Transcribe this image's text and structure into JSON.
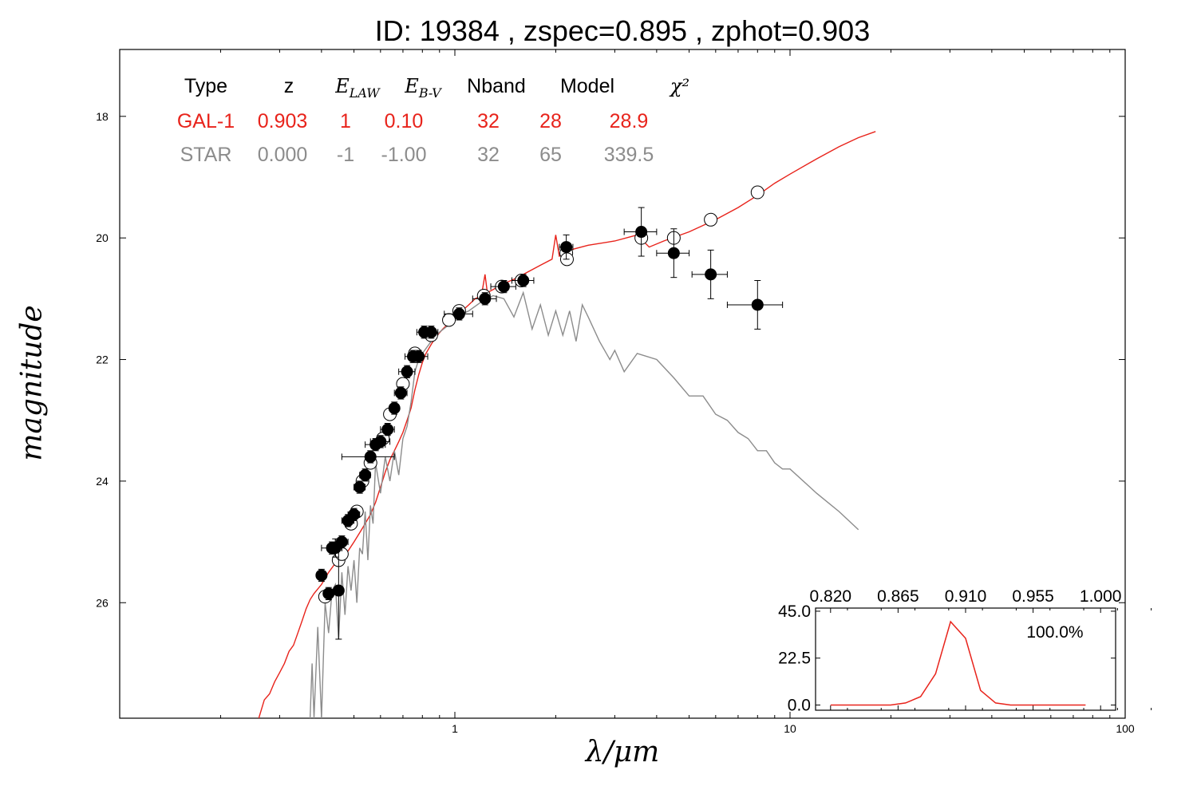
{
  "chart_data": [
    {
      "type": "scatter",
      "title": "ID:  19384 , zspec=0.895 , zphot=0.903",
      "xlabel": "λ/μm",
      "ylabel": "magnitude",
      "xscale": "log",
      "yaxis_inverted": true,
      "xlim": [
        0.1,
        100
      ],
      "ylim": [
        27.9,
        16.9
      ],
      "x_ticks": [
        {
          "v": 1,
          "label": "1"
        },
        {
          "v": 10,
          "label": "10"
        },
        {
          "v": 100,
          "label": "100"
        }
      ],
      "y_ticks": [
        {
          "v": 18,
          "label": "18"
        },
        {
          "v": 20,
          "label": "20"
        },
        {
          "v": 22,
          "label": "22"
        },
        {
          "v": 24,
          "label": "24"
        },
        {
          "v": 26,
          "label": "26"
        }
      ],
      "grid": false,
      "colors": {
        "gal": "#e8231b",
        "star": "#8c8c8c",
        "points": "#000000",
        "model": "#ffffff"
      },
      "fit_table": {
        "headers": [
          "Type",
          "z",
          "E_LAW",
          "E_B-V",
          "Nband",
          "Model",
          "χ²"
        ],
        "rows": [
          {
            "name": "GAL-1",
            "cells": [
              "GAL-1",
              "0.903",
              "1",
              "0.10",
              "32",
              "28",
              "28.9"
            ],
            "color": "#e8231b"
          },
          {
            "name": "STAR",
            "cells": [
              "STAR",
              "0.000",
              "-1",
              "-1.00",
              "32",
              "65",
              "339.5"
            ],
            "color": "#8c8c8c"
          }
        ]
      },
      "series": [
        {
          "kind": "galaxy_template_line",
          "color": "#e8231b",
          "points": [
            [
              0.26,
              27.9
            ],
            [
              0.27,
              27.6
            ],
            [
              0.28,
              27.5
            ],
            [
              0.29,
              27.3
            ],
            [
              0.3,
              27.15
            ],
            [
              0.31,
              27.0
            ],
            [
              0.32,
              26.8
            ],
            [
              0.33,
              26.7
            ],
            [
              0.34,
              26.5
            ],
            [
              0.35,
              26.3
            ],
            [
              0.36,
              26.1
            ],
            [
              0.37,
              25.95
            ],
            [
              0.38,
              25.85
            ],
            [
              0.4,
              25.7
            ],
            [
              0.42,
              25.5
            ],
            [
              0.44,
              25.35
            ],
            [
              0.46,
              25.25
            ],
            [
              0.48,
              25.15
            ],
            [
              0.5,
              25.0
            ],
            [
              0.52,
              24.85
            ],
            [
              0.54,
              24.7
            ],
            [
              0.56,
              24.55
            ],
            [
              0.58,
              24.35
            ],
            [
              0.6,
              24.1
            ],
            [
              0.62,
              23.85
            ],
            [
              0.64,
              23.65
            ],
            [
              0.66,
              23.5
            ],
            [
              0.68,
              23.35
            ],
            [
              0.7,
              23.2
            ],
            [
              0.72,
              23.0
            ],
            [
              0.74,
              22.8
            ],
            [
              0.76,
              22.5
            ],
            [
              0.78,
              22.25
            ],
            [
              0.8,
              22.05
            ],
            [
              0.82,
              21.9
            ],
            [
              0.85,
              21.75
            ],
            [
              0.88,
              21.62
            ],
            [
              0.92,
              21.5
            ],
            [
              0.96,
              21.4
            ],
            [
              1.0,
              21.3
            ],
            [
              1.05,
              21.2
            ],
            [
              1.1,
              21.1
            ],
            [
              1.15,
              21.0
            ],
            [
              1.2,
              20.95
            ],
            [
              1.23,
              20.6
            ],
            [
              1.25,
              20.9
            ],
            [
              1.3,
              20.85
            ],
            [
              1.4,
              20.75
            ],
            [
              1.5,
              20.68
            ],
            [
              1.6,
              20.6
            ],
            [
              1.8,
              20.45
            ],
            [
              1.95,
              20.35
            ],
            [
              2.0,
              19.95
            ],
            [
              2.05,
              20.3
            ],
            [
              2.2,
              20.2
            ],
            [
              2.5,
              20.12
            ],
            [
              3.0,
              20.05
            ],
            [
              3.5,
              19.95
            ],
            [
              3.8,
              20.15
            ],
            [
              4.2,
              20.05
            ],
            [
              5.0,
              19.9
            ],
            [
              6.0,
              19.7
            ],
            [
              7.0,
              19.5
            ],
            [
              8.0,
              19.3
            ],
            [
              9.0,
              19.1
            ],
            [
              10.0,
              18.95
            ],
            [
              12.0,
              18.7
            ],
            [
              14.0,
              18.5
            ],
            [
              16.0,
              18.35
            ],
            [
              18.0,
              18.25
            ]
          ]
        },
        {
          "kind": "star_template_line",
          "color": "#8c8c8c",
          "points": [
            [
              0.37,
              27.9
            ],
            [
              0.375,
              27.0
            ],
            [
              0.38,
              27.9
            ],
            [
              0.39,
              26.4
            ],
            [
              0.4,
              27.9
            ],
            [
              0.41,
              26.0
            ],
            [
              0.42,
              26.5
            ],
            [
              0.43,
              25.8
            ],
            [
              0.44,
              25.7
            ],
            [
              0.45,
              26.6
            ],
            [
              0.46,
              25.5
            ],
            [
              0.47,
              26.2
            ],
            [
              0.48,
              25.4
            ],
            [
              0.49,
              25.8
            ],
            [
              0.5,
              25.3
            ],
            [
              0.51,
              26.0
            ],
            [
              0.52,
              25.1
            ],
            [
              0.53,
              25.2
            ],
            [
              0.54,
              24.5
            ],
            [
              0.55,
              25.3
            ],
            [
              0.56,
              24.4
            ],
            [
              0.57,
              24.7
            ],
            [
              0.58,
              23.7
            ],
            [
              0.6,
              24.2
            ],
            [
              0.62,
              23.6
            ],
            [
              0.64,
              24.0
            ],
            [
              0.66,
              23.5
            ],
            [
              0.68,
              23.9
            ],
            [
              0.7,
              23.3
            ],
            [
              0.72,
              23.1
            ],
            [
              0.74,
              22.7
            ],
            [
              0.76,
              22.2
            ],
            [
              0.78,
              22.0
            ],
            [
              0.8,
              21.9
            ],
            [
              0.85,
              21.7
            ],
            [
              0.9,
              21.55
            ],
            [
              0.95,
              21.45
            ],
            [
              1.0,
              21.3
            ],
            [
              1.1,
              21.2
            ],
            [
              1.2,
              21.05
            ],
            [
              1.3,
              20.95
            ],
            [
              1.4,
              21.0
            ],
            [
              1.5,
              21.3
            ],
            [
              1.6,
              20.9
            ],
            [
              1.7,
              21.5
            ],
            [
              1.8,
              21.1
            ],
            [
              1.9,
              21.6
            ],
            [
              2.0,
              21.2
            ],
            [
              2.1,
              21.6
            ],
            [
              2.2,
              21.2
            ],
            [
              2.3,
              21.7
            ],
            [
              2.4,
              21.1
            ],
            [
              2.5,
              21.3
            ],
            [
              2.7,
              21.7
            ],
            [
              2.9,
              22.0
            ],
            [
              3.0,
              21.85
            ],
            [
              3.2,
              22.2
            ],
            [
              3.5,
              21.9
            ],
            [
              4.0,
              22.0
            ],
            [
              4.5,
              22.3
            ],
            [
              5.0,
              22.6
            ],
            [
              5.5,
              22.6
            ],
            [
              6.0,
              22.9
            ],
            [
              6.5,
              23.0
            ],
            [
              7.0,
              23.2
            ],
            [
              7.5,
              23.3
            ],
            [
              8.0,
              23.5
            ],
            [
              8.5,
              23.5
            ],
            [
              9.0,
              23.7
            ],
            [
              9.5,
              23.8
            ],
            [
              10.0,
              23.8
            ],
            [
              12.0,
              24.2
            ],
            [
              14.0,
              24.5
            ],
            [
              16.0,
              24.8
            ]
          ]
        },
        {
          "kind": "observed_magnitudes",
          "marker": "filled-circle",
          "points": [
            {
              "x": 0.4,
              "y": 25.55,
              "xerr": 0.01,
              "yerr": 0.1
            },
            {
              "x": 0.42,
              "y": 25.85,
              "xerr": 0.01,
              "yerr": 0.1
            },
            {
              "x": 0.43,
              "y": 25.1,
              "xerr": 0.03,
              "yerr": 0.1
            },
            {
              "x": 0.44,
              "y": 25.1,
              "xerr": 0.02,
              "yerr": 0.15
            },
            {
              "x": 0.45,
              "y": 25.8,
              "xerr": 0.01,
              "yerr": 0.8
            },
            {
              "x": 0.46,
              "y": 25.0,
              "xerr": 0.02,
              "yerr": 0.1
            },
            {
              "x": 0.48,
              "y": 24.65,
              "xerr": 0.02,
              "yerr": 0.1
            },
            {
              "x": 0.5,
              "y": 24.55,
              "xerr": 0.02,
              "yerr": 0.1
            },
            {
              "x": 0.52,
              "y": 24.1,
              "xerr": 0.02,
              "yerr": 0.1
            },
            {
              "x": 0.54,
              "y": 23.9,
              "xerr": 0.02,
              "yerr": 0.1
            },
            {
              "x": 0.56,
              "y": 23.6,
              "xerr": 0.1,
              "yerr": 0.1
            },
            {
              "x": 0.58,
              "y": 23.4,
              "xerr": 0.04,
              "yerr": 0.1
            },
            {
              "x": 0.6,
              "y": 23.35,
              "xerr": 0.04,
              "yerr": 0.1
            },
            {
              "x": 0.63,
              "y": 23.15,
              "xerr": 0.03,
              "yerr": 0.1
            },
            {
              "x": 0.66,
              "y": 22.8,
              "xerr": 0.02,
              "yerr": 0.1
            },
            {
              "x": 0.69,
              "y": 22.55,
              "xerr": 0.03,
              "yerr": 0.1
            },
            {
              "x": 0.72,
              "y": 22.2,
              "xerr": 0.04,
              "yerr": 0.1
            },
            {
              "x": 0.75,
              "y": 21.95,
              "xerr": 0.04,
              "yerr": 0.1
            },
            {
              "x": 0.78,
              "y": 21.95,
              "xerr": 0.05,
              "yerr": 0.1
            },
            {
              "x": 0.81,
              "y": 21.55,
              "xerr": 0.04,
              "yerr": 0.1
            },
            {
              "x": 0.85,
              "y": 21.55,
              "xerr": 0.04,
              "yerr": 0.1
            },
            {
              "x": 1.03,
              "y": 21.25,
              "xerr": 0.1,
              "yerr": 0.1
            },
            {
              "x": 1.23,
              "y": 21.0,
              "xerr": 0.1,
              "yerr": 0.1
            },
            {
              "x": 1.4,
              "y": 20.8,
              "xerr": 0.12,
              "yerr": 0.1
            },
            {
              "x": 1.6,
              "y": 20.7,
              "xerr": 0.12,
              "yerr": 0.1
            },
            {
              "x": 2.15,
              "y": 20.15,
              "xerr": 0.1,
              "yerr": 0.2
            },
            {
              "x": 3.6,
              "y": 19.9,
              "xerr": 0.4,
              "yerr": 0.4
            },
            {
              "x": 4.5,
              "y": 20.25,
              "xerr": 0.5,
              "yerr": 0.4
            },
            {
              "x": 5.8,
              "y": 20.6,
              "xerr": 0.7,
              "yerr": 0.4
            },
            {
              "x": 8.0,
              "y": 21.1,
              "xerr": 1.5,
              "yerr": 0.4
            }
          ]
        },
        {
          "kind": "model_magnitudes",
          "marker": "open-circle",
          "points": [
            {
              "x": 0.41,
              "y": 25.9
            },
            {
              "x": 0.45,
              "y": 25.3
            },
            {
              "x": 0.46,
              "y": 25.2
            },
            {
              "x": 0.49,
              "y": 24.7
            },
            {
              "x": 0.51,
              "y": 24.5
            },
            {
              "x": 0.53,
              "y": 24.0
            },
            {
              "x": 0.56,
              "y": 23.7
            },
            {
              "x": 0.61,
              "y": 23.3
            },
            {
              "x": 0.64,
              "y": 22.9
            },
            {
              "x": 0.7,
              "y": 22.4
            },
            {
              "x": 0.76,
              "y": 21.9
            },
            {
              "x": 0.85,
              "y": 21.6
            },
            {
              "x": 0.96,
              "y": 21.35
            },
            {
              "x": 1.03,
              "y": 21.2
            },
            {
              "x": 1.22,
              "y": 20.95
            },
            {
              "x": 1.38,
              "y": 20.8
            },
            {
              "x": 1.58,
              "y": 20.7
            },
            {
              "x": 2.15,
              "y": 20.25
            },
            {
              "x": 2.16,
              "y": 20.35
            },
            {
              "x": 3.6,
              "y": 20.0
            },
            {
              "x": 4.5,
              "y": 20.0
            },
            {
              "x": 5.8,
              "y": 19.7
            },
            {
              "x": 8.0,
              "y": 19.25
            }
          ]
        }
      ]
    },
    {
      "type": "line",
      "title": "",
      "annotation": "100.0%",
      "xlim": [
        0.81,
        1.01
      ],
      "ylim": [
        -2.5,
        46.5
      ],
      "x_ticks": [
        "0.820",
        "0.865",
        "0.910",
        "0.955",
        "1.000"
      ],
      "y_ticks": [
        "45.0",
        "22.5",
        "0.0"
      ],
      "color": "#e8231b",
      "x": [
        0.82,
        0.83,
        0.84,
        0.85,
        0.86,
        0.87,
        0.88,
        0.89,
        0.9,
        0.91,
        0.92,
        0.93,
        0.94,
        0.95,
        0.96,
        0.97,
        0.98,
        0.99
      ],
      "y": [
        0,
        0,
        0,
        0,
        0,
        1,
        4,
        15,
        40,
        32,
        7,
        1,
        0,
        0,
        0,
        0,
        0,
        0
      ]
    }
  ]
}
